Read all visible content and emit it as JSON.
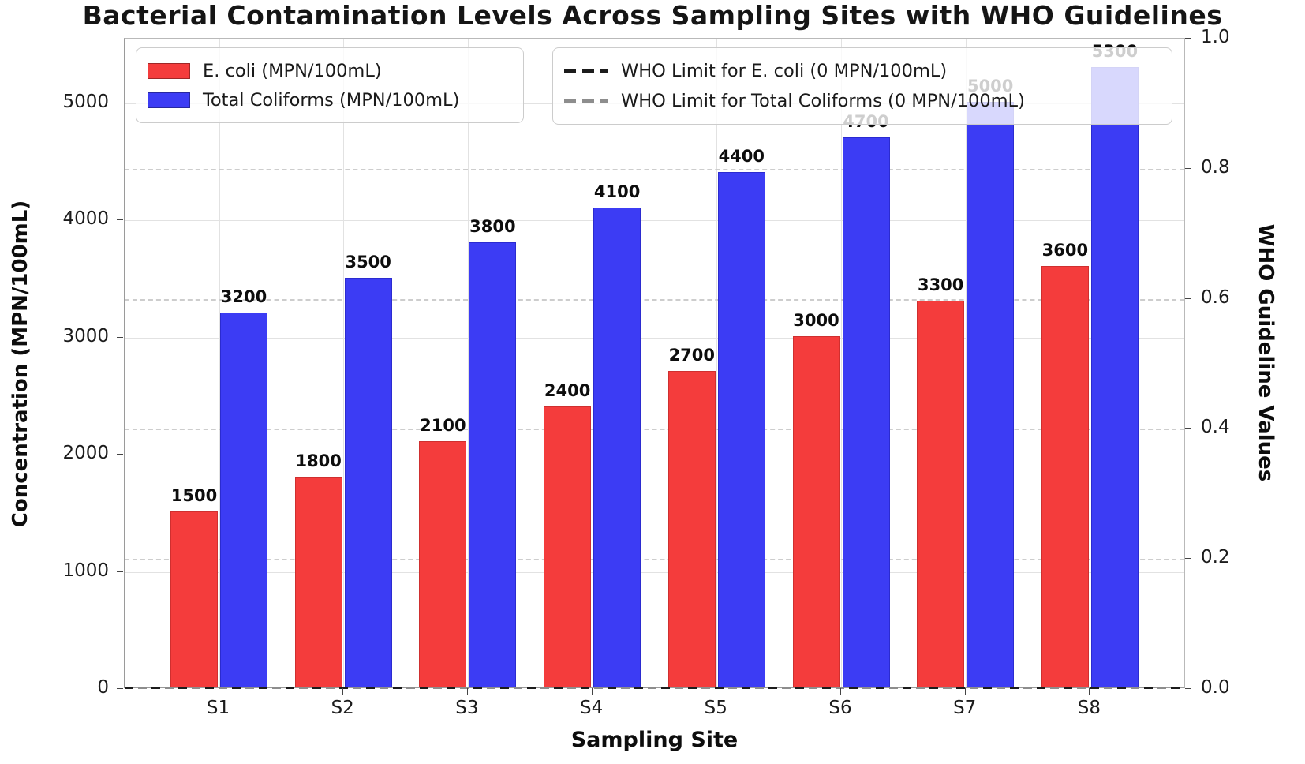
{
  "title": "Bacterial Contamination Levels Across Sampling Sites with WHO Guidelines",
  "chart_data": {
    "type": "bar",
    "title": "Bacterial Contamination Levels Across Sampling Sites with WHO Guidelines",
    "categories": [
      "S1",
      "S2",
      "S3",
      "S4",
      "S5",
      "S6",
      "S7",
      "S8"
    ],
    "series": [
      {
        "label": "E. coli (MPN/100mL)",
        "color": "#f43c3c",
        "edge_color": "#cf2f2f",
        "values": [
          1500,
          1800,
          2100,
          2400,
          2700,
          3000,
          3300,
          3600
        ]
      },
      {
        "label": "Total Coliforms (MPN/100mL)",
        "color": "#3c3cf4",
        "edge_color": "#2b2bd0",
        "values": [
          3200,
          3500,
          3800,
          4100,
          4400,
          4700,
          5000,
          5300
        ]
      }
    ],
    "guideline_lines": [
      {
        "label": "WHO Limit for E. coli (0 MPN/100mL)",
        "value": 0,
        "color": "#1c1c1c",
        "style": "dashed"
      },
      {
        "label": "WHO Limit for Total Coliforms (0 MPN/100mL)",
        "value": 0,
        "color": "#8d8d8d",
        "style": "dashed"
      }
    ],
    "xlabel": "Sampling Site",
    "ylabel_left": "Concentration (MPN/100mL)",
    "ylabel_right": "WHO Guideline Values",
    "yticks_left": [
      0,
      1000,
      2000,
      3000,
      4000,
      5000
    ],
    "yticks_right": [
      "0.0",
      "0.2",
      "0.4",
      "0.6",
      "0.8",
      "1.0"
    ],
    "ylim_left": [
      0,
      5553
    ],
    "ylim_right": [
      0.0,
      1.0
    ],
    "grid": true,
    "legend_positions": [
      "upper left",
      "upper right"
    ]
  }
}
